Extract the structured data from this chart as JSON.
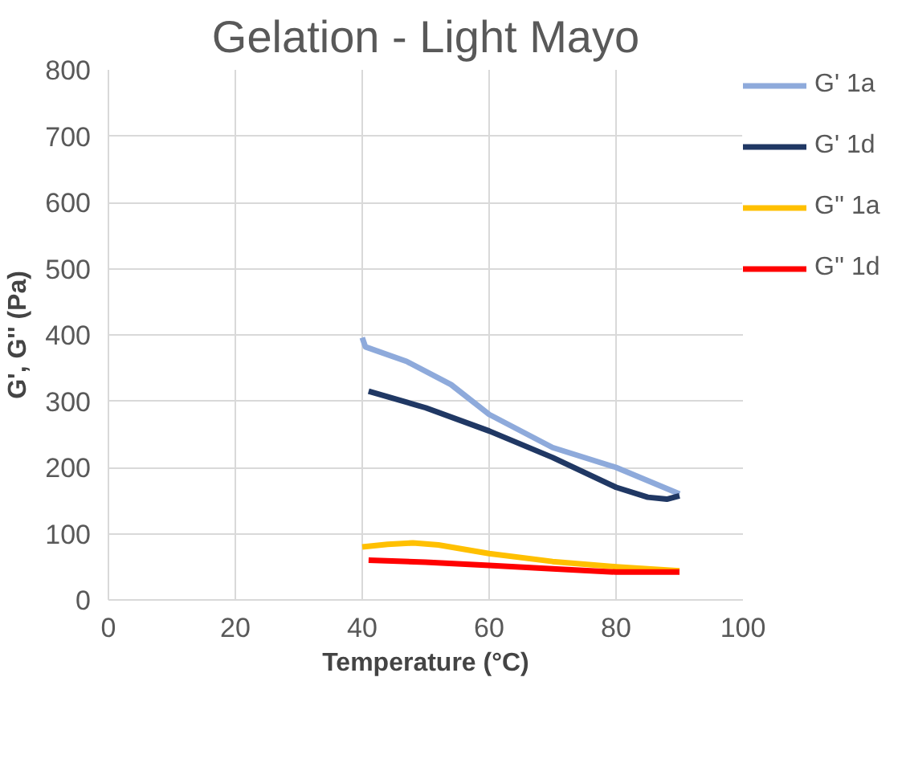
{
  "chart_data": {
    "type": "line",
    "title": "Gelation - Light Mayo",
    "xlabel": "Temperature (°C)",
    "ylabel": "G', G'' (Pa)",
    "xlim": [
      0,
      100
    ],
    "xticks": [
      0,
      20,
      40,
      60,
      80,
      100
    ],
    "ylim": [
      0,
      800
    ],
    "yticks": [
      0,
      100,
      200,
      300,
      400,
      500,
      600,
      700,
      800
    ],
    "grid": true,
    "legend": "right",
    "marker": "none",
    "line_style": "solid",
    "series": [
      {
        "name": "G' 1a",
        "color": "#8eaadb",
        "x": [
          40,
          40.5,
          47,
          54,
          60,
          70,
          80,
          90
        ],
        "values": [
          396,
          382,
          360,
          325,
          280,
          230,
          200,
          160
        ]
      },
      {
        "name": "G' 1d",
        "color": "#203864",
        "x": [
          41,
          50,
          60,
          70,
          80,
          85,
          88,
          90
        ],
        "values": [
          315,
          290,
          255,
          215,
          170,
          155,
          152,
          157
        ]
      },
      {
        "name": "G'' 1a",
        "color": "#ffc000",
        "x": [
          40,
          44,
          48,
          52,
          60,
          70,
          80,
          90
        ],
        "values": [
          80,
          84,
          86,
          83,
          70,
          58,
          50,
          44
        ]
      },
      {
        "name": "G'' 1d",
        "color": "#ff0000",
        "x": [
          41,
          50,
          60,
          70,
          80,
          90
        ],
        "values": [
          60,
          57,
          52,
          47,
          42,
          42
        ]
      }
    ]
  }
}
